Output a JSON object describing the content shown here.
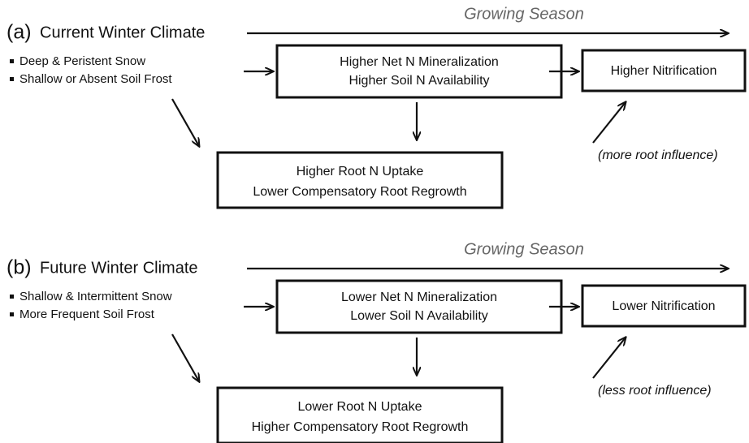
{
  "panels": [
    {
      "label": "(a)",
      "title": "Current Winter Climate",
      "season": "Growing Season",
      "conditions": [
        "Deep & Peristent Snow",
        "Shallow or Absent Soil Frost"
      ],
      "mineralization": [
        "Higher Net N Mineralization",
        "Higher Soil N Availability"
      ],
      "nitrification": "Higher Nitrification",
      "uptake": [
        "Higher Root N Uptake",
        "Lower Compensatory Root Regrowth"
      ],
      "influence": "(more root influence)"
    },
    {
      "label": "(b)",
      "title": "Future Winter Climate",
      "season": "Growing Season",
      "conditions": [
        "Shallow & Intermittent Snow",
        "More Frequent Soil Frost"
      ],
      "mineralization": [
        "Lower Net N Mineralization",
        "Lower Soil N Availability"
      ],
      "nitrification": "Lower Nitrification",
      "uptake": [
        "Lower Root N Uptake",
        "Higher Compensatory Root Regrowth"
      ],
      "influence": "(less root influence)"
    }
  ]
}
